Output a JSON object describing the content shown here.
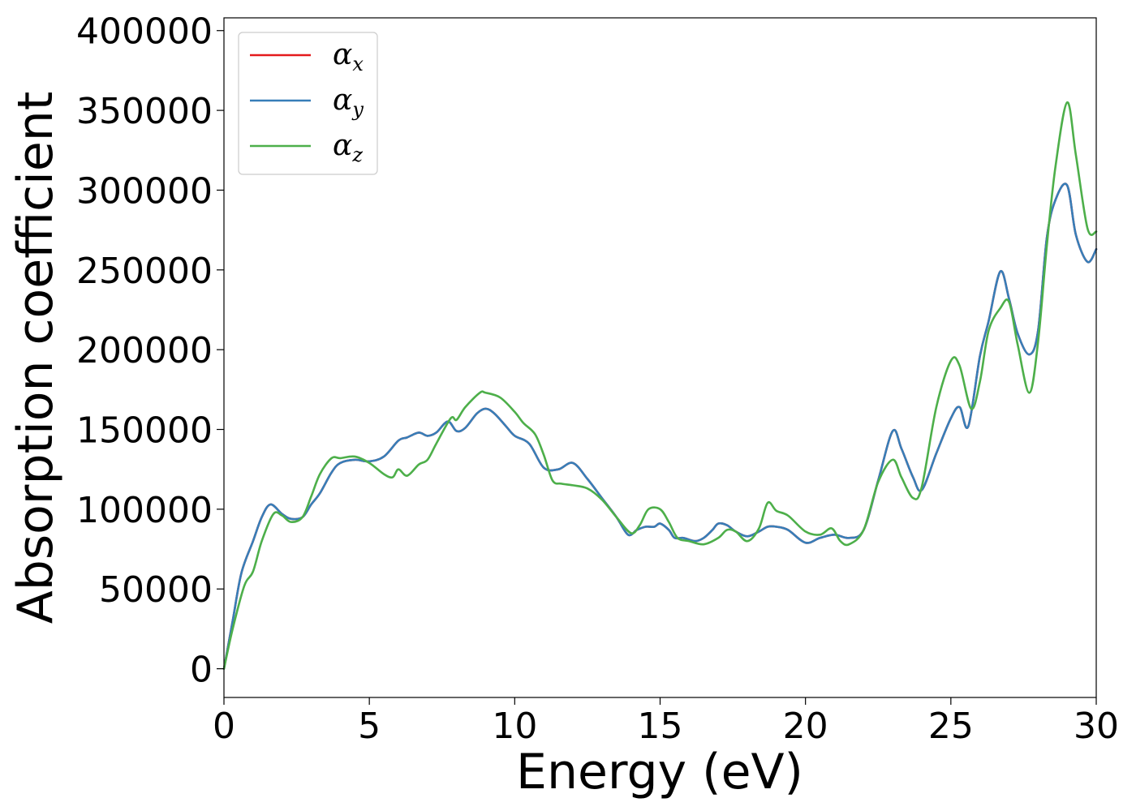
{
  "chart_data": {
    "type": "line",
    "xlabel": "Energy (eV)",
    "ylabel": "Absorption coefficient",
    "xlim": [
      0,
      30
    ],
    "ylim": [
      -18000,
      408000
    ],
    "xticks": [
      0,
      5,
      10,
      15,
      20,
      25,
      30
    ],
    "yticks": [
      0,
      50000,
      100000,
      150000,
      200000,
      250000,
      300000,
      350000,
      400000
    ],
    "grid": false,
    "legend_position": "top-left",
    "series": [
      {
        "name": "α",
        "sub": "x",
        "color": "#e41a1c",
        "x": [
          0,
          0.3,
          0.6,
          1.0,
          1.3,
          1.6,
          2.0,
          2.3,
          2.7,
          3.0,
          3.3,
          3.7,
          4.0,
          4.5,
          5.0,
          5.5,
          6.0,
          6.3,
          6.7,
          7.0,
          7.3,
          7.7,
          8.0,
          8.3,
          8.7,
          9.0,
          9.3,
          9.7,
          10.0,
          10.5,
          11.0,
          11.5,
          12.0,
          12.5,
          13.0,
          13.5,
          13.9,
          14.2,
          14.5,
          14.8,
          15.0,
          15.3,
          15.5,
          15.8,
          16.2,
          16.5,
          16.8,
          17.0,
          17.3,
          17.6,
          18.0,
          18.4,
          18.7,
          19.0,
          19.4,
          20.0,
          20.5,
          21.0,
          21.5,
          22.0,
          22.5,
          23.0,
          23.3,
          23.7,
          24.0,
          24.5,
          25.0,
          25.3,
          25.6,
          26.0,
          26.3,
          26.7,
          27.0,
          27.3,
          27.7,
          28.0,
          28.3,
          28.6,
          29.0,
          29.3,
          29.7,
          30.0
        ],
        "y": [
          0,
          30000,
          60000,
          80000,
          95000,
          103000,
          97000,
          94000,
          95000,
          103000,
          110000,
          123000,
          129000,
          131000,
          130000,
          133000,
          143000,
          145000,
          148000,
          146000,
          148000,
          155000,
          149000,
          151000,
          160000,
          163000,
          160000,
          152000,
          146000,
          141000,
          126000,
          125000,
          129000,
          119000,
          107000,
          95000,
          84000,
          87000,
          89000,
          89000,
          91000,
          87000,
          82000,
          82000,
          80000,
          82000,
          87000,
          91000,
          90000,
          86000,
          83000,
          86000,
          89000,
          89000,
          87000,
          79000,
          82000,
          84000,
          82000,
          87000,
          118000,
          149000,
          138000,
          120000,
          112000,
          135000,
          157000,
          164000,
          152000,
          196000,
          218000,
          249000,
          232000,
          210000,
          197000,
          212000,
          270000,
          294000,
          303000,
          272000,
          255000,
          263000
        ]
      },
      {
        "name": "α",
        "sub": "y",
        "color": "#377eb8",
        "x": [
          0,
          0.3,
          0.6,
          1.0,
          1.3,
          1.6,
          2.0,
          2.3,
          2.7,
          3.0,
          3.3,
          3.7,
          4.0,
          4.5,
          5.0,
          5.5,
          6.0,
          6.3,
          6.7,
          7.0,
          7.3,
          7.7,
          8.0,
          8.3,
          8.7,
          9.0,
          9.3,
          9.7,
          10.0,
          10.5,
          11.0,
          11.5,
          12.0,
          12.5,
          13.0,
          13.5,
          13.9,
          14.2,
          14.5,
          14.8,
          15.0,
          15.3,
          15.5,
          15.8,
          16.2,
          16.5,
          16.8,
          17.0,
          17.3,
          17.6,
          18.0,
          18.4,
          18.7,
          19.0,
          19.4,
          20.0,
          20.5,
          21.0,
          21.5,
          22.0,
          22.5,
          23.0,
          23.3,
          23.7,
          24.0,
          24.5,
          25.0,
          25.3,
          25.6,
          26.0,
          26.3,
          26.7,
          27.0,
          27.3,
          27.7,
          28.0,
          28.3,
          28.6,
          29.0,
          29.3,
          29.7,
          30.0
        ],
        "y": [
          0,
          30000,
          60000,
          80000,
          95000,
          103000,
          97000,
          94000,
          95000,
          103000,
          110000,
          123000,
          129000,
          131000,
          130000,
          133000,
          143000,
          145000,
          148000,
          146000,
          148000,
          155000,
          149000,
          151000,
          160000,
          163000,
          160000,
          152000,
          146000,
          141000,
          126000,
          125000,
          129000,
          119000,
          107000,
          95000,
          84000,
          87000,
          89000,
          89000,
          91000,
          87000,
          82000,
          82000,
          80000,
          82000,
          87000,
          91000,
          90000,
          86000,
          83000,
          86000,
          89000,
          89000,
          87000,
          79000,
          82000,
          84000,
          82000,
          87000,
          118000,
          149000,
          138000,
          120000,
          112000,
          135000,
          157000,
          164000,
          152000,
          196000,
          218000,
          249000,
          232000,
          210000,
          197000,
          212000,
          270000,
          294000,
          303000,
          272000,
          255000,
          263000
        ]
      },
      {
        "name": "α",
        "sub": "z",
        "color": "#4daf4a",
        "x": [
          0,
          0.3,
          0.7,
          1.0,
          1.3,
          1.7,
          2.0,
          2.3,
          2.7,
          3.0,
          3.3,
          3.7,
          4.0,
          4.5,
          5.0,
          5.5,
          5.8,
          6.0,
          6.3,
          6.7,
          7.0,
          7.3,
          7.8,
          8.0,
          8.3,
          8.8,
          9.0,
          9.5,
          10.0,
          10.3,
          10.7,
          11.0,
          11.3,
          11.6,
          12.0,
          12.5,
          13.0,
          13.5,
          14.0,
          14.3,
          14.6,
          15.0,
          15.3,
          15.6,
          16.0,
          16.5,
          17.0,
          17.3,
          17.6,
          18.0,
          18.4,
          18.7,
          19.0,
          19.4,
          20.0,
          20.5,
          20.9,
          21.2,
          21.5,
          22.0,
          22.5,
          23.0,
          23.3,
          23.7,
          24.0,
          24.5,
          25.0,
          25.3,
          25.7,
          26.0,
          26.3,
          26.7,
          27.0,
          27.3,
          27.7,
          28.0,
          28.3,
          28.6,
          29.0,
          29.3,
          29.7,
          30.0
        ],
        "y": [
          0,
          25000,
          52000,
          61000,
          80000,
          97000,
          96000,
          92000,
          95000,
          108000,
          122000,
          132000,
          132000,
          133000,
          129000,
          122000,
          120000,
          125000,
          121000,
          128000,
          131000,
          141000,
          157000,
          156000,
          164000,
          173000,
          173000,
          170000,
          161000,
          154000,
          147000,
          134000,
          118000,
          116000,
          115000,
          113000,
          106000,
          95000,
          85000,
          90000,
          100000,
          100000,
          92000,
          82000,
          80000,
          78000,
          82000,
          87000,
          86000,
          80000,
          88000,
          104000,
          99000,
          96000,
          86000,
          84000,
          88000,
          80000,
          78000,
          87000,
          117000,
          131000,
          120000,
          107000,
          114000,
          164000,
          193000,
          190000,
          163000,
          180000,
          212000,
          226000,
          230000,
          203000,
          173000,
          205000,
          265000,
          315000,
          355000,
          322000,
          276000,
          274000
        ]
      }
    ]
  }
}
